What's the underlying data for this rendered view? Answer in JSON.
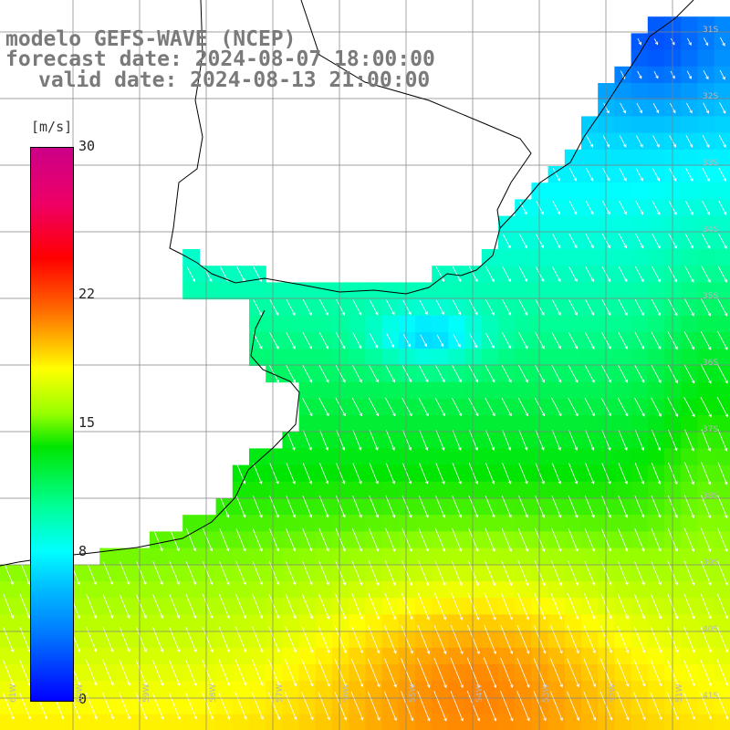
{
  "title": {
    "line1": "modelo GEFS-WAVE (NCEP)",
    "line2": "forecast date: 2024-08-07 18:00:00",
    "line3": "valid date: 2024-08-13 21:00:00"
  },
  "colorbar": {
    "unit": "[m/s]",
    "ticks": [
      {
        "label": "30",
        "value": 30
      },
      {
        "label": "22",
        "value": 22
      },
      {
        "label": "15",
        "value": 15
      },
      {
        "label": "8",
        "value": 8
      },
      {
        "label": "0",
        "value": 0
      }
    ],
    "min": 0,
    "max": 30
  },
  "grid": {
    "lat_labels": [
      "31S",
      "32S",
      "33S",
      "34S",
      "35S",
      "36S",
      "37S",
      "38S",
      "39S",
      "40S",
      "41S"
    ],
    "lon_labels": [
      "61W",
      "60W",
      "59W",
      "58W",
      "57W",
      "56W",
      "55W",
      "54W",
      "53W",
      "52W",
      "51W"
    ]
  },
  "colors": {
    "land": "#ffffff",
    "coast": "#000000",
    "grid": "#808080",
    "arrows": "#ffffff",
    "title": "#7a7a7a"
  }
}
